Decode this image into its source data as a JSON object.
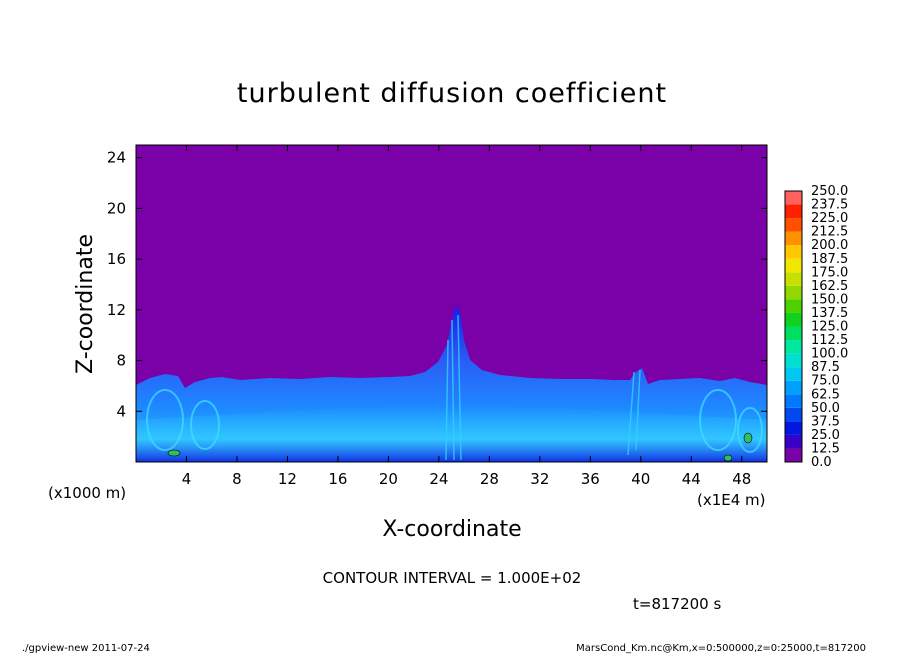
{
  "chart_data": {
    "type": "heatmap",
    "title": "turbulent diffusion coefficient",
    "xlabel": "X-coordinate",
    "ylabel": "Z-coordinate",
    "x_unit_label": "(x1E4 m)",
    "y_unit_label": "(x1000 m)",
    "xlim": [
      0,
      50
    ],
    "ylim": [
      0,
      25
    ],
    "x_ticks": [
      4,
      8,
      12,
      16,
      20,
      24,
      28,
      32,
      36,
      40,
      44,
      48
    ],
    "y_ticks": [
      4,
      8,
      12,
      16,
      20,
      24
    ],
    "colorbar_levels": [
      "0.0",
      "12.5",
      "25.0",
      "37.5",
      "50.0",
      "62.5",
      "75.0",
      "87.5",
      "100.0",
      "112.5",
      "125.0",
      "137.5",
      "150.0",
      "162.5",
      "175.0",
      "187.5",
      "200.0",
      "212.5",
      "225.0",
      "237.5",
      "250.0"
    ],
    "colorbar_colors": [
      "#7a00a8",
      "#3a00c8",
      "#0018e0",
      "#0048f0",
      "#0078ff",
      "#00a0ff",
      "#00c8f0",
      "#00e0d0",
      "#00e8a0",
      "#00e060",
      "#10d020",
      "#50d000",
      "#90d800",
      "#c8e000",
      "#f0e800",
      "#ffc800",
      "#ff9000",
      "#ff5000",
      "#ff2000",
      "#ff6060",
      "#ff9090"
    ],
    "background_value": "0.0",
    "contour_interval_text": "CONTOUR INTERVAL = 1.000E+02",
    "time_text": "t=817200  s",
    "grid": false
  },
  "footer": {
    "left": "./gpview-new   2011-07-24",
    "right": "MarsCond_Km.nc@Km,x=0:500000,z=0:25000,t=817200"
  }
}
